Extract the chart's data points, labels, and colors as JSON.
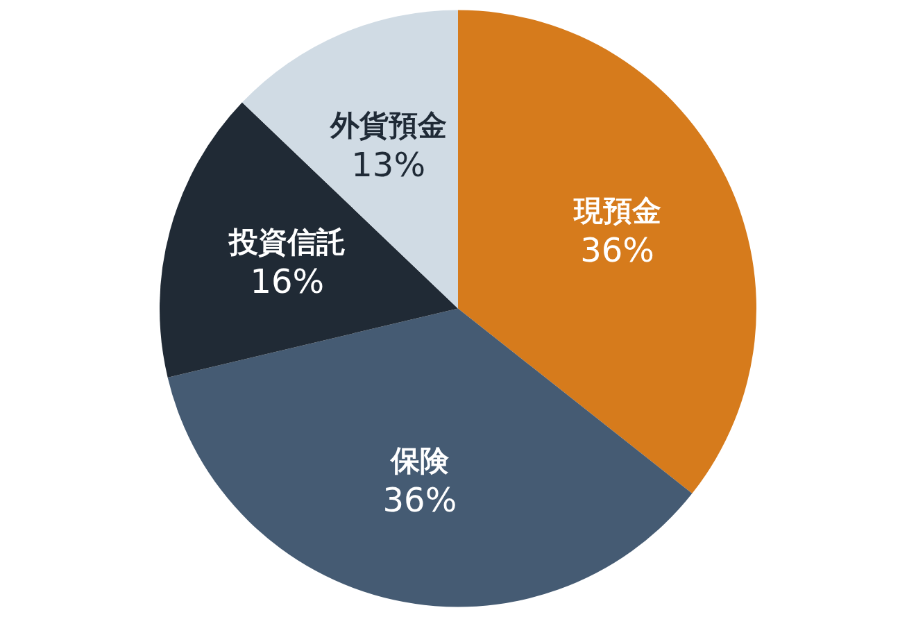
{
  "chart_data": {
    "type": "pie",
    "categories": [
      "現預金",
      "保険",
      "投資信託",
      "外貨預金"
    ],
    "values": [
      36,
      36,
      16,
      13
    ],
    "value_labels": [
      "36%",
      "36%",
      "16%",
      "13%"
    ],
    "colors": [
      "#d67b1c",
      "#455b73",
      "#202a35",
      "#d0dbe4"
    ]
  }
}
